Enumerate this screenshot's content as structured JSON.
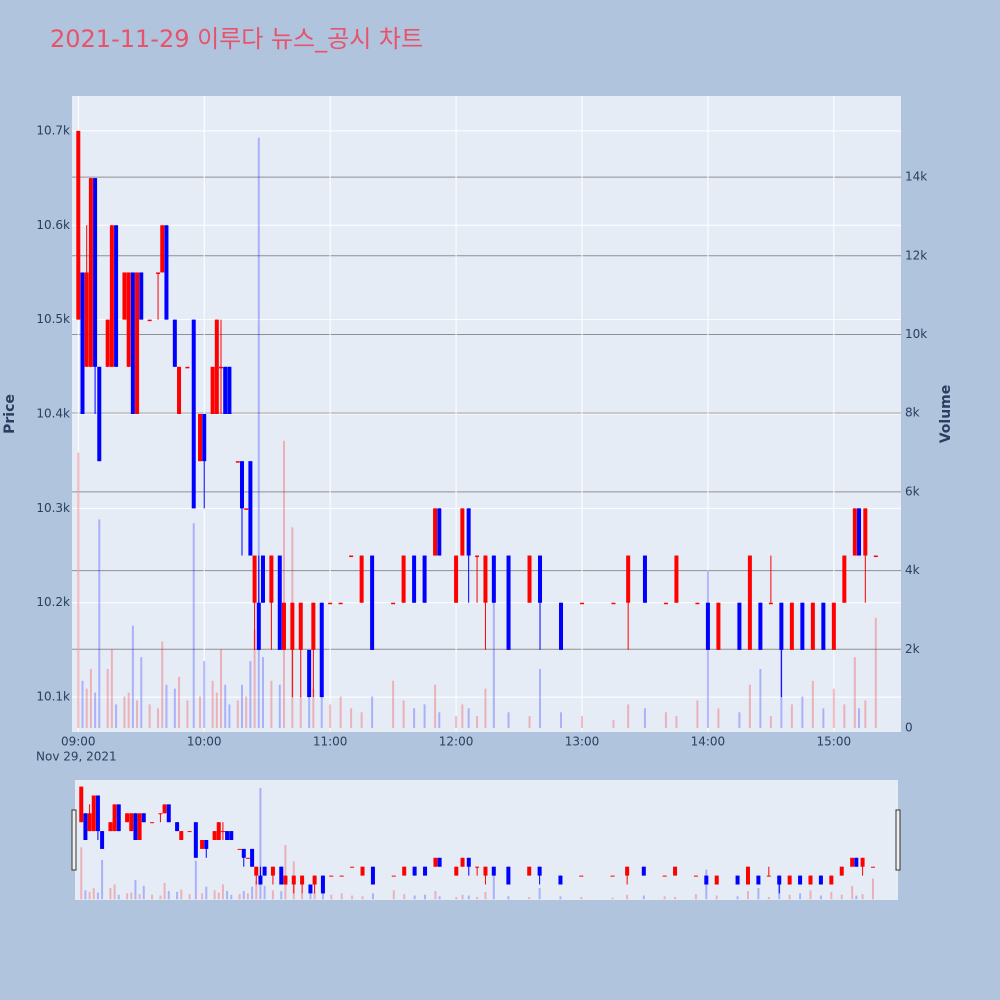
{
  "chart_data": {
    "type": "candlestick",
    "title": "2021-11-29 이루다 뉴스_공시 차트",
    "x": [
      "09:00",
      "09:02",
      "09:04",
      "09:06",
      "09:08",
      "09:10",
      "09:14",
      "09:16",
      "09:18",
      "09:22",
      "09:24",
      "09:26",
      "09:28",
      "09:30",
      "09:34",
      "09:38",
      "09:40",
      "09:42",
      "09:46",
      "09:48",
      "09:52",
      "09:55",
      "09:58",
      "10:00",
      "10:04",
      "10:06",
      "10:08",
      "10:10",
      "10:12",
      "10:16",
      "10:18",
      "10:20",
      "10:22",
      "10:24",
      "10:26",
      "10:28",
      "10:32",
      "10:36",
      "10:38",
      "10:42",
      "10:46",
      "10:50",
      "10:52",
      "10:56",
      "11:00",
      "11:05",
      "11:10",
      "11:15",
      "11:20",
      "11:30",
      "11:35",
      "11:40",
      "11:45",
      "11:50",
      "11:52",
      "12:00",
      "12:03",
      "12:06",
      "12:10",
      "12:14",
      "12:18",
      "12:25",
      "12:35",
      "12:40",
      "12:50",
      "13:00",
      "13:15",
      "13:22",
      "13:30",
      "13:40",
      "13:45",
      "13:55",
      "14:00",
      "14:05",
      "14:15",
      "14:20",
      "14:25",
      "14:30",
      "14:35",
      "14:40",
      "14:45",
      "14:50",
      "14:55",
      "15:00",
      "15:05",
      "15:10",
      "15:12",
      "15:15",
      "15:20"
    ],
    "open": [
      10500,
      10550,
      10450,
      10450,
      10650,
      10450,
      10450,
      10450,
      10600,
      10500,
      10450,
      10550,
      10400,
      10550,
      10500,
      10550,
      10550,
      10600,
      10500,
      10400,
      10450,
      10500,
      10350,
      10400,
      10400,
      10400,
      10450,
      10450,
      10450,
      10350,
      10350,
      10300,
      10350,
      10200,
      10200,
      10250,
      10200,
      10250,
      10150,
      10150,
      10150,
      10150,
      10150,
      10200,
      10200,
      10200,
      10250,
      10200,
      10250,
      10200,
      10200,
      10250,
      10250,
      10250,
      10300,
      10200,
      10250,
      10300,
      10250,
      10200,
      10250,
      10250,
      10200,
      10250,
      10200,
      10200,
      10200,
      10200,
      10250,
      10200,
      10200,
      10200,
      10200,
      10150,
      10200,
      10150,
      10200,
      10200,
      10200,
      10150,
      10200,
      10150,
      10200,
      10150,
      10200,
      10250,
      10300,
      10250,
      10250
    ],
    "high": [
      10700,
      10550,
      10600,
      10650,
      10650,
      10450,
      10500,
      10600,
      10600,
      10550,
      10550,
      10550,
      10550,
      10550,
      10500,
      10550,
      10600,
      10600,
      10500,
      10450,
      10450,
      10500,
      10400,
      10400,
      10450,
      10500,
      10500,
      10450,
      10450,
      10350,
      10350,
      10300,
      10350,
      10250,
      10250,
      10250,
      10250,
      10250,
      10200,
      10200,
      10200,
      10150,
      10200,
      10200,
      10200,
      10200,
      10250,
      10250,
      10250,
      10200,
      10250,
      10250,
      10250,
      10300,
      10300,
      10250,
      10300,
      10300,
      10250,
      10250,
      10250,
      10250,
      10250,
      10250,
      10200,
      10200,
      10200,
      10250,
      10250,
      10200,
      10250,
      10200,
      10200,
      10200,
      10200,
      10250,
      10200,
      10250,
      10200,
      10200,
      10200,
      10200,
      10200,
      10200,
      10250,
      10300,
      10300,
      10300,
      10250
    ],
    "low": [
      10500,
      10400,
      10450,
      10450,
      10400,
      10350,
      10450,
      10450,
      10450,
      10500,
      10450,
      10400,
      10400,
      10500,
      10500,
      10500,
      10550,
      10500,
      10450,
      10400,
      10450,
      10300,
      10350,
      10300,
      10400,
      10400,
      10400,
      10400,
      10400,
      10350,
      10250,
      10300,
      10250,
      10150,
      10150,
      10200,
      10150,
      10150,
      10150,
      10100,
      10100,
      10100,
      10100,
      10100,
      10200,
      10200,
      10250,
      10200,
      10150,
      10200,
      10200,
      10200,
      10200,
      10250,
      10250,
      10200,
      10250,
      10200,
      10200,
      10150,
      10200,
      10150,
      10200,
      10150,
      10150,
      10200,
      10200,
      10150,
      10200,
      10200,
      10200,
      10200,
      10150,
      10150,
      10150,
      10150,
      10150,
      10200,
      10100,
      10150,
      10150,
      10150,
      10150,
      10150,
      10200,
      10250,
      10250,
      10200,
      10250
    ],
    "close": [
      10700,
      10400,
      10550,
      10650,
      10450,
      10350,
      10500,
      10600,
      10450,
      10550,
      10550,
      10400,
      10550,
      10500,
      10500,
      10550,
      10600,
      10500,
      10450,
      10450,
      10450,
      10300,
      10400,
      10350,
      10450,
      10500,
      10450,
      10400,
      10400,
      10350,
      10300,
      10300,
      10250,
      10250,
      10150,
      10200,
      10250,
      10150,
      10200,
      10200,
      10200,
      10100,
      10200,
      10100,
      10200,
      10200,
      10250,
      10250,
      10150,
      10200,
      10250,
      10200,
      10200,
      10300,
      10250,
      10250,
      10300,
      10250,
      10250,
      10250,
      10200,
      10150,
      10250,
      10200,
      10150,
      10200,
      10200,
      10250,
      10200,
      10200,
      10250,
      10200,
      10150,
      10200,
      10150,
      10250,
      10150,
      10200,
      10150,
      10200,
      10150,
      10200,
      10150,
      10200,
      10250,
      10300,
      10250,
      10300,
      10250
    ],
    "volume": [
      7000,
      1200,
      1000,
      1500,
      900,
      5300,
      1500,
      2000,
      600,
      800,
      900,
      2600,
      700,
      1800,
      600,
      500,
      2200,
      1100,
      1000,
      1300,
      700,
      5200,
      800,
      1700,
      1200,
      900,
      2000,
      1100,
      600,
      700,
      1100,
      800,
      1700,
      2500,
      15000,
      1800,
      1200,
      1100,
      7300,
      5100,
      800,
      1500,
      1000,
      2200,
      600,
      800,
      500,
      400,
      800,
      1200,
      700,
      500,
      600,
      1100,
      400,
      300,
      600,
      500,
      300,
      1000,
      3800,
      400,
      300,
      1500,
      400,
      300,
      200,
      600,
      500,
      400,
      300,
      700,
      4000,
      500,
      400,
      1100,
      1500,
      300,
      2500,
      600,
      800,
      1200,
      500,
      1000,
      600,
      1800,
      500,
      700,
      2800
    ],
    "colors": {
      "increasing": "#ff0000",
      "decreasing": "#0000ff"
    },
    "xlim": [
      "08:57",
      "15:32"
    ],
    "xticks": [
      "09:00",
      "10:00",
      "11:00",
      "12:00",
      "13:00",
      "14:00",
      "15:00"
    ],
    "x_date_label": "Nov 29, 2021",
    "ylabel": "Price",
    "y2label": "Volume",
    "ylim": [
      10063,
      10737
    ],
    "yticks": [
      {
        "value": 10100,
        "label": "10.1k"
      },
      {
        "value": 10200,
        "label": "10.2k"
      },
      {
        "value": 10300,
        "label": "10.3k"
      },
      {
        "value": 10400,
        "label": "10.4k"
      },
      {
        "value": 10500,
        "label": "10.5k"
      },
      {
        "value": 10600,
        "label": "10.6k"
      },
      {
        "value": 10700,
        "label": "10.7k"
      }
    ],
    "y2lim": [
      -102,
      16060
    ],
    "y2ticks": [
      0,
      {
        "value": 2000,
        "label": "2k"
      },
      {
        "value": 4000,
        "label": "4k"
      },
      {
        "value": 6000,
        "label": "6k"
      },
      {
        "value": 8000,
        "label": "8k"
      },
      {
        "value": 10000,
        "label": "10k"
      },
      {
        "value": 12000,
        "label": "12k"
      },
      {
        "value": 14000,
        "label": "14k"
      }
    ],
    "grid": true,
    "rangeslider": true
  }
}
